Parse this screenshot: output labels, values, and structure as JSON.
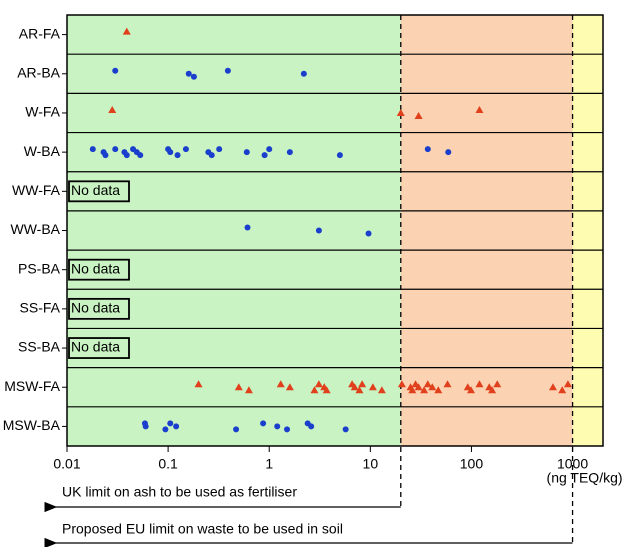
{
  "chart_data": {
    "type": "strip",
    "categories": [
      "AR-FA",
      "AR-BA",
      "W-FA",
      "W-BA",
      "WW-FA",
      "WW-BA",
      "PS-BA",
      "SS-FA",
      "SS-BA",
      "MSW-FA",
      "MSW-BA"
    ],
    "markers": [
      "triangle",
      "circle",
      "triangle",
      "circle",
      "triangle",
      "circle",
      "circle",
      "triangle",
      "circle",
      "triangle",
      "circle"
    ],
    "colors": [
      "#e0401c",
      "#1a3fcc",
      "#e0401c",
      "#1a3fcc",
      "#e0401c",
      "#1a3fcc",
      "#1a3fcc",
      "#e0401c",
      "#1a3fcc",
      "#e0401c",
      "#1a3fcc"
    ],
    "values": [
      [
        0.039
      ],
      [
        0.03,
        0.16,
        0.18,
        0.39,
        2.2
      ],
      [
        0.028,
        20,
        30,
        120
      ],
      [
        0.018,
        0.023,
        0.024,
        0.03,
        0.037,
        0.039,
        0.045,
        0.049,
        0.053,
        0.1,
        0.105,
        0.124,
        0.15,
        0.25,
        0.27,
        0.32,
        0.6,
        0.9,
        1.0,
        1.6,
        5.0,
        37,
        59
      ],
      null,
      [
        0.61,
        3.1,
        9.6
      ],
      null,
      null,
      null,
      [
        0.2,
        0.5,
        0.63,
        1.3,
        1.6,
        2.8,
        3.1,
        3.5,
        3.7,
        6.6,
        7,
        7.8,
        8.3,
        10.6,
        13,
        20.5,
        25,
        26,
        28,
        30,
        34,
        37,
        41,
        47,
        58,
        92,
        99,
        120,
        150,
        160,
        180,
        640,
        790,
        900
      ],
      [
        0.059,
        0.06,
        0.094,
        0.105,
        0.12,
        0.47,
        0.87,
        1.2,
        1.5,
        2.4,
        2.6,
        5.7
      ]
    ],
    "category_notes": [
      null,
      null,
      null,
      null,
      "No data",
      null,
      "No data",
      "No data",
      "No data",
      null,
      null
    ],
    "xlim": [
      0.01,
      2000
    ],
    "xscale": "log",
    "xticks": [
      0.01,
      0.1,
      1,
      10,
      100,
      1000
    ],
    "xlabel": "(ng TEQ/kg)",
    "limits": [
      {
        "value": 20,
        "label": "UK limit on ash to be used as fertiliser"
      },
      {
        "value": 1000,
        "label": "Proposed EU limit on waste to be used in soil"
      }
    ],
    "region_colors": [
      "#c9f3c3",
      "#fbd2b2",
      "#fdfcb0"
    ]
  }
}
